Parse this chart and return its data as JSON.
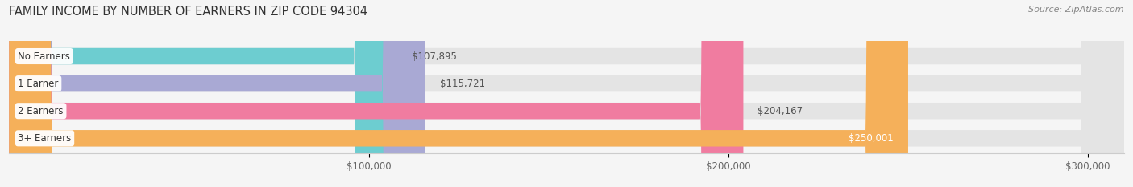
{
  "title": "FAMILY INCOME BY NUMBER OF EARNERS IN ZIP CODE 94304",
  "source": "Source: ZipAtlas.com",
  "categories": [
    "No Earners",
    "1 Earner",
    "2 Earners",
    "3+ Earners"
  ],
  "values": [
    107895,
    115721,
    204167,
    250001
  ],
  "bar_colors": [
    "#6dcdd0",
    "#a9a9d4",
    "#f07ca0",
    "#f5b05a"
  ],
  "bar_labels": [
    "$107,895",
    "$115,721",
    "$204,167",
    "$250,001"
  ],
  "label_inside": [
    false,
    false,
    false,
    true
  ],
  "background_color": "#f5f5f5",
  "bar_bg_color": "#e4e4e4",
  "xlim": [
    0,
    310000
  ],
  "xticks": [
    100000,
    200000,
    300000
  ],
  "xticklabels": [
    "$100,000",
    "$200,000",
    "$300,000"
  ],
  "title_fontsize": 10.5,
  "source_fontsize": 8,
  "label_fontsize": 8.5,
  "tick_fontsize": 8.5
}
